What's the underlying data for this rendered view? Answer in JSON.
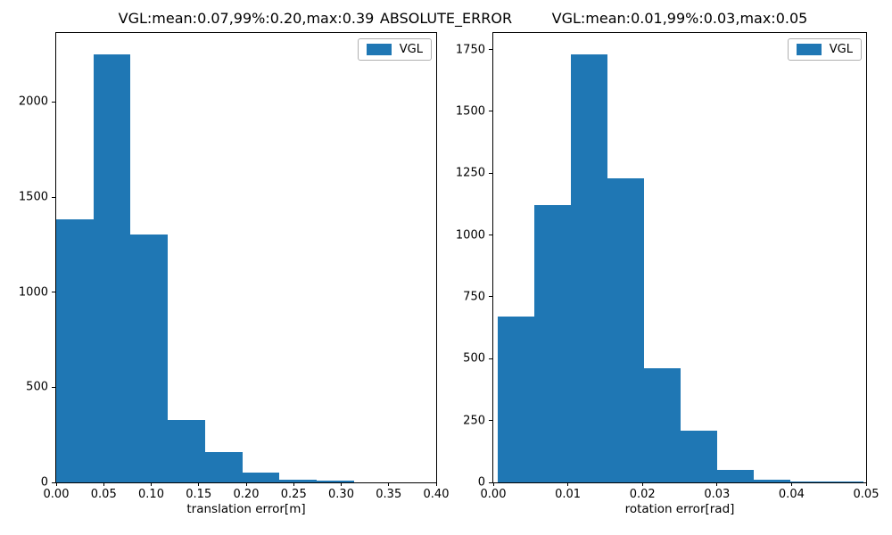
{
  "figure": {
    "suptitle": "ABSOLUTE_ERROR",
    "background_color": "#ffffff",
    "bar_color": "#1f77b4",
    "axis_color": "#000000",
    "legend_border_color": "#b0b0b0"
  },
  "chart_data": [
    {
      "type": "bar",
      "subtype": "histogram",
      "title": "VGL:mean:0.07,99%:0.20,max:0.39",
      "xlabel": "translation error[m]",
      "ylabel": "",
      "legend": {
        "position": "upper right",
        "entries": [
          "VGL"
        ]
      },
      "grid": false,
      "xlim": [
        0.0,
        0.4
      ],
      "ylim": [
        0,
        2363
      ],
      "xticks": [
        0.0,
        0.05,
        0.1,
        0.15,
        0.2,
        0.25,
        0.3,
        0.35,
        0.4
      ],
      "xtick_labels": [
        "0.00",
        "0.05",
        "0.10",
        "0.15",
        "0.20",
        "0.25",
        "0.30",
        "0.35",
        "0.40"
      ],
      "yticks": [
        0,
        500,
        1000,
        1500,
        2000
      ],
      "ytick_labels": [
        "0",
        "500",
        "1000",
        "1500",
        "2000"
      ],
      "bin_edges": [
        0.0,
        0.0392,
        0.0784,
        0.1176,
        0.1568,
        0.196,
        0.2352,
        0.2744,
        0.3136,
        0.3528,
        0.392
      ],
      "values": [
        1385,
        2250,
        1305,
        330,
        160,
        50,
        12,
        10,
        1,
        1
      ]
    },
    {
      "type": "bar",
      "subtype": "histogram",
      "title": "VGL:mean:0.01,99%:0.03,max:0.05",
      "xlabel": "rotation error[rad]",
      "ylabel": "",
      "legend": {
        "position": "upper right",
        "entries": [
          "VGL"
        ]
      },
      "grid": false,
      "xlim": [
        0.0,
        0.05
      ],
      "ylim": [
        0,
        1817
      ],
      "xticks": [
        0.0,
        0.01,
        0.02,
        0.03,
        0.04,
        0.05
      ],
      "xtick_labels": [
        "0.00",
        "0.01",
        "0.02",
        "0.03",
        "0.04",
        "0.05"
      ],
      "yticks": [
        0,
        250,
        500,
        750,
        1000,
        1250,
        1500,
        1750
      ],
      "ytick_labels": [
        "0",
        "250",
        "500",
        "750",
        "1000",
        "1250",
        "1500",
        "1750"
      ],
      "bin_edges": [
        0.0006,
        0.00551,
        0.01042,
        0.01533,
        0.02024,
        0.02515,
        0.03006,
        0.03497,
        0.03988,
        0.04479,
        0.0497
      ],
      "values": [
        670,
        1120,
        1730,
        1230,
        460,
        210,
        50,
        12,
        5,
        2
      ]
    }
  ]
}
